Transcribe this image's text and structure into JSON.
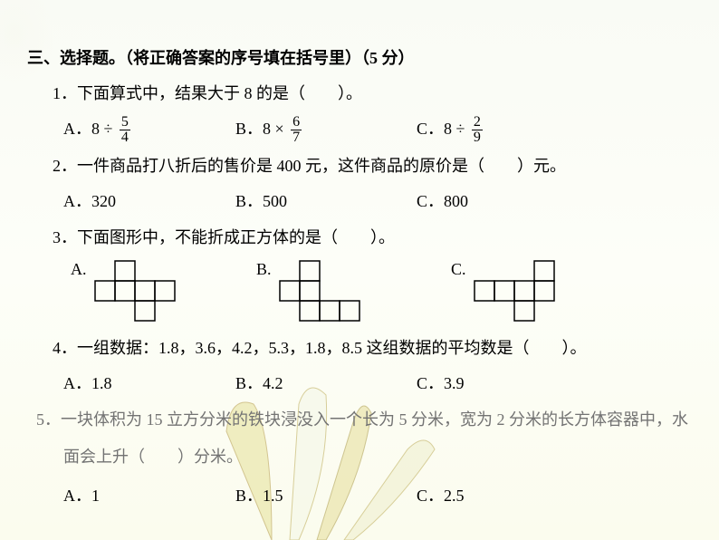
{
  "section": {
    "title": "三、选择题。（将正确答案的序号填在括号里）（5 分）"
  },
  "q1": {
    "stem": "1．下面算式中，结果大于 8 的是（　　）。",
    "optA_prefix": "A．8 ÷ ",
    "optA_num": "5",
    "optA_den": "4",
    "optB_prefix": "B．8 × ",
    "optB_num": "6",
    "optB_den": "7",
    "optC_prefix": "C．8 ÷ ",
    "optC_num": "2",
    "optC_den": "9"
  },
  "q2": {
    "stem": "2．一件商品打八折后的售价是 400 元，这件商品的原价是（　　）元。",
    "optA": "A．320",
    "optB": "B．500",
    "optC": "C．800"
  },
  "q3": {
    "stem": "3．下面图形中，不能折成正方体的是（　　）。",
    "optA": "A.",
    "optB": "B.",
    "optC": "C.",
    "net": {
      "cell_size": 22,
      "stroke": "#000000",
      "stroke_width": 1.5,
      "A": [
        [
          1,
          0
        ],
        [
          0,
          1
        ],
        [
          1,
          1
        ],
        [
          2,
          1
        ],
        [
          3,
          1
        ],
        [
          2,
          2
        ]
      ],
      "B": [
        [
          1,
          0
        ],
        [
          0,
          1
        ],
        [
          1,
          1
        ],
        [
          1,
          2
        ],
        [
          2,
          2
        ],
        [
          3,
          2
        ]
      ],
      "C": [
        [
          3,
          0
        ],
        [
          0,
          1
        ],
        [
          1,
          1
        ],
        [
          2,
          1
        ],
        [
          3,
          1
        ],
        [
          2,
          2
        ]
      ]
    }
  },
  "q4": {
    "stem": "4．一组数据：1.8，3.6，4.2，5.3，1.8，8.5 这组数据的平均数是（　　）。",
    "optA": "A．1.8",
    "optB": "B．4.2",
    "optC": "C．3.9"
  },
  "q5": {
    "stem": "5．一块体积为 15 立方分米的铁块浸没入一个长为 5 分米，宽为 2 分米的长方体容器中，水",
    "line2": "面会上升（　　）分米。",
    "optA": "A．1",
    "optB": "B．1.5",
    "optC": "C．2.5"
  }
}
